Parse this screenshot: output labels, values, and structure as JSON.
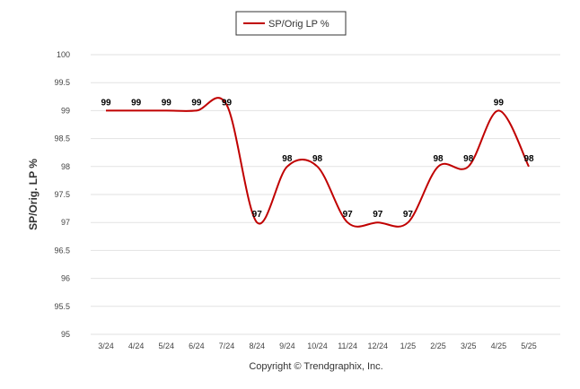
{
  "chart_data": {
    "type": "line",
    "legend": {
      "label": "SP/Orig LP %",
      "placement": "top-center"
    },
    "ylabel": "SP/Orig. LP %",
    "xlabel": "",
    "ylim": [
      95,
      100
    ],
    "yticks": [
      "95",
      "95.5",
      "96",
      "96.5",
      "97",
      "97.5",
      "98",
      "98.5",
      "99",
      "99.5",
      "100"
    ],
    "grid": true,
    "categories": [
      "3/24",
      "4/24",
      "5/24",
      "6/24",
      "7/24",
      "8/24",
      "9/24",
      "10/24",
      "11/24",
      "12/24",
      "1/25",
      "2/25",
      "3/25",
      "4/25",
      "5/25"
    ],
    "series": [
      {
        "name": "SP/Orig LP %",
        "color": "#c00000",
        "values": [
          99,
          99,
          99,
          99,
          99.1,
          97,
          98,
          98,
          97,
          97,
          97,
          98,
          98,
          99,
          98
        ],
        "labels": [
          "99",
          "99",
          "99",
          "99",
          "99",
          "97",
          "98",
          "98",
          "97",
          "97",
          "97",
          "98",
          "98",
          "99",
          "98"
        ]
      }
    ]
  },
  "footer": {
    "copyright": "Copyright © Trendgraphix, Inc."
  }
}
